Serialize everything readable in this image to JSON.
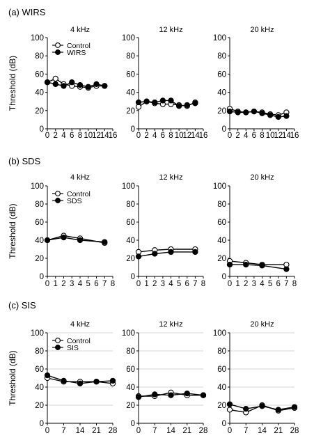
{
  "figure": {
    "sections": [
      {
        "label": "(a) WIRS",
        "legend": [
          "Control",
          "WIRS"
        ]
      },
      {
        "label": "(b) SDS",
        "legend": [
          "Control",
          "SDS"
        ]
      },
      {
        "label": "(c) SIS",
        "legend": [
          "Control",
          "SIS"
        ]
      }
    ]
  },
  "chart_data": [
    {
      "type": "line",
      "group": "(a) WIRS",
      "title": "4 kHz",
      "ylabel": "Threshold (dB)",
      "ylim": [
        0,
        100
      ],
      "yticks": [
        0,
        20,
        40,
        60,
        80,
        100
      ],
      "xlim": [
        0,
        16
      ],
      "xticks": [
        0,
        2,
        4,
        6,
        8,
        10,
        12,
        14,
        16
      ],
      "grid": false,
      "legend_position": "top-left",
      "series": [
        {
          "name": "Control",
          "marker": "open-circle",
          "x": [
            0,
            2,
            4,
            6,
            8,
            10,
            12,
            14
          ],
          "y": [
            51,
            55,
            49,
            47,
            46,
            45,
            47,
            47
          ]
        },
        {
          "name": "WIRS",
          "marker": "filled-circle",
          "x": [
            0,
            2,
            4,
            6,
            8,
            10,
            12,
            14
          ],
          "y": [
            51,
            49,
            47,
            51,
            48,
            46,
            49,
            47
          ]
        }
      ]
    },
    {
      "type": "line",
      "group": "(a) WIRS",
      "title": "12 kHz",
      "ylim": [
        0,
        100
      ],
      "yticks": [
        0,
        20,
        40,
        60,
        80,
        100
      ],
      "xlim": [
        0,
        16
      ],
      "xticks": [
        0,
        2,
        4,
        6,
        8,
        10,
        12,
        14,
        16
      ],
      "grid": false,
      "series": [
        {
          "name": "Control",
          "marker": "open-circle",
          "x": [
            0,
            2,
            4,
            6,
            8,
            10,
            12,
            14
          ],
          "y": [
            24,
            30,
            28,
            27,
            27,
            26,
            25,
            29
          ]
        },
        {
          "name": "WIRS",
          "marker": "filled-circle",
          "x": [
            0,
            2,
            4,
            6,
            8,
            10,
            12,
            14
          ],
          "y": [
            29,
            30,
            29,
            31,
            31,
            25,
            26,
            28
          ]
        }
      ]
    },
    {
      "type": "line",
      "group": "(a) WIRS",
      "title": "20 kHz",
      "ylim": [
        0,
        100
      ],
      "yticks": [
        0,
        20,
        40,
        60,
        80,
        100
      ],
      "xlim": [
        0,
        16
      ],
      "xticks": [
        0,
        2,
        4,
        6,
        8,
        10,
        12,
        14,
        16
      ],
      "grid": false,
      "series": [
        {
          "name": "Control",
          "marker": "open-circle",
          "x": [
            0,
            2,
            4,
            6,
            8,
            10,
            12,
            14
          ],
          "y": [
            22,
            19,
            18,
            19,
            18,
            16,
            15,
            18
          ]
        },
        {
          "name": "WIRS",
          "marker": "filled-circle",
          "x": [
            0,
            2,
            4,
            6,
            8,
            10,
            12,
            14
          ],
          "y": [
            19,
            18,
            18,
            19,
            17,
            15,
            13,
            14
          ]
        }
      ]
    },
    {
      "type": "line",
      "group": "(b) SDS",
      "title": "4 kHz",
      "ylabel": "Threshold (dB)",
      "ylim": [
        0,
        100
      ],
      "yticks": [
        0,
        20,
        40,
        60,
        80,
        100
      ],
      "xlim": [
        0,
        8
      ],
      "xticks": [
        0,
        1,
        2,
        3,
        4,
        5,
        6,
        7,
        8
      ],
      "grid": false,
      "legend_position": "top-left",
      "series": [
        {
          "name": "Control",
          "marker": "open-circle",
          "x": [
            0,
            2,
            4,
            7
          ],
          "y": [
            40,
            45,
            42,
            37
          ]
        },
        {
          "name": "SDS",
          "marker": "filled-circle",
          "x": [
            0,
            2,
            4,
            7
          ],
          "y": [
            40,
            43,
            40,
            38
          ]
        }
      ]
    },
    {
      "type": "line",
      "group": "(b) SDS",
      "title": "12 kHz",
      "ylim": [
        0,
        100
      ],
      "yticks": [
        0,
        20,
        40,
        60,
        80,
        100
      ],
      "xlim": [
        0,
        8
      ],
      "xticks": [
        0,
        1,
        2,
        3,
        4,
        5,
        6,
        7,
        8
      ],
      "grid": false,
      "series": [
        {
          "name": "Control",
          "marker": "open-circle",
          "x": [
            0,
            2,
            4,
            7
          ],
          "y": [
            27,
            29,
            30,
            30
          ]
        },
        {
          "name": "SDS",
          "marker": "filled-circle",
          "x": [
            0,
            2,
            4,
            7
          ],
          "y": [
            22,
            25,
            27,
            27
          ]
        }
      ]
    },
    {
      "type": "line",
      "group": "(b) SDS",
      "title": "20 kHz",
      "ylim": [
        0,
        100
      ],
      "yticks": [
        0,
        20,
        40,
        60,
        80,
        100
      ],
      "xlim": [
        0,
        8
      ],
      "xticks": [
        0,
        1,
        2,
        3,
        4,
        5,
        6,
        7,
        8
      ],
      "grid": false,
      "series": [
        {
          "name": "Control",
          "marker": "open-circle",
          "x": [
            0,
            2,
            4,
            7
          ],
          "y": [
            17,
            15,
            13,
            13
          ]
        },
        {
          "name": "SDS",
          "marker": "filled-circle",
          "x": [
            0,
            2,
            4,
            7
          ],
          "y": [
            13,
            13,
            12,
            8
          ]
        }
      ]
    },
    {
      "type": "line",
      "group": "(c) SIS",
      "title": "4 kHz",
      "ylabel": "Threshold (dB)",
      "ylim": [
        0,
        100
      ],
      "yticks": [
        0,
        20,
        40,
        60,
        80,
        100
      ],
      "xlim": [
        0,
        28
      ],
      "xticks": [
        0,
        7,
        14,
        21,
        28
      ],
      "grid": true,
      "legend_position": "top-left",
      "series": [
        {
          "name": "Control",
          "marker": "open-circle",
          "x": [
            0,
            7,
            14,
            21,
            28
          ],
          "y": [
            50,
            46,
            46,
            46,
            44
          ]
        },
        {
          "name": "SIS",
          "marker": "filled-circle",
          "x": [
            0,
            7,
            14,
            21,
            28
          ],
          "y": [
            53,
            47,
            44,
            46,
            47
          ]
        }
      ]
    },
    {
      "type": "line",
      "group": "(c) SIS",
      "title": "12 kHz",
      "ylim": [
        0,
        100
      ],
      "yticks": [
        0,
        20,
        40,
        60,
        80,
        100
      ],
      "xlim": [
        0,
        28
      ],
      "xticks": [
        0,
        7,
        14,
        21,
        28
      ],
      "grid": true,
      "series": [
        {
          "name": "Control",
          "marker": "open-circle",
          "x": [
            0,
            7,
            14,
            21,
            28
          ],
          "y": [
            30,
            30,
            34,
            31,
            31
          ]
        },
        {
          "name": "SIS",
          "marker": "filled-circle",
          "x": [
            0,
            7,
            14,
            21,
            28
          ],
          "y": [
            29,
            32,
            31,
            33,
            31
          ]
        }
      ]
    },
    {
      "type": "line",
      "group": "(c) SIS",
      "title": "20 kHz",
      "ylim": [
        0,
        100
      ],
      "yticks": [
        0,
        20,
        40,
        60,
        80,
        100
      ],
      "xlim": [
        0,
        28
      ],
      "xticks": [
        0,
        7,
        14,
        21,
        28
      ],
      "grid": true,
      "series": [
        {
          "name": "Control",
          "marker": "open-circle",
          "x": [
            0,
            7,
            14,
            21,
            28
          ],
          "y": [
            15,
            12,
            20,
            14,
            17
          ]
        },
        {
          "name": "SIS",
          "marker": "filled-circle",
          "x": [
            0,
            7,
            14,
            21,
            28
          ],
          "y": [
            21,
            16,
            19,
            15,
            18
          ]
        }
      ]
    }
  ]
}
